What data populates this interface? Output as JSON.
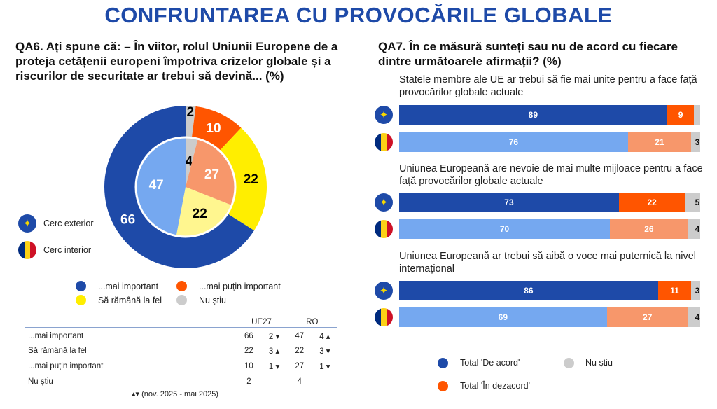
{
  "title": "CONFRUNTAREA CU PROVOCĂRILE GLOBALE",
  "colors": {
    "eu_agree": "#1e4aa8",
    "ro_agree": "#75a8f0",
    "eu_disagree": "#ff5500",
    "ro_disagree": "#f7976b",
    "dk": "#cccccc",
    "yellow": "#ffee00",
    "light_yellow": "#fff68f"
  },
  "chart_data": [
    {
      "type": "pie",
      "title": "QA6. Ați spune că: – În viitor, rolul Uniunii Europene de a proteja cetățenii europeni împotriva crizelor globale și a riscurilor de securitate ar trebui să devină... (%)",
      "categories": [
        "...mai important",
        "Să rămână la fel",
        "...mai puțin important",
        "Nu știu"
      ],
      "series": [
        {
          "name": "Cerc exterior",
          "values": [
            66,
            22,
            10,
            2
          ]
        },
        {
          "name": "Cerc interior",
          "values": [
            47,
            22,
            27,
            4
          ]
        }
      ],
      "legend": [
        "...mai important",
        "...mai puțin important",
        "Să rămână la fel",
        "Nu știu"
      ],
      "ring_labels": [
        "Cerc exterior",
        "Cerc interior"
      ]
    },
    {
      "type": "bar",
      "title": "QA7. În ce măsură sunteți sau nu de acord cu fiecare dintre următoarele afirmații? (%)",
      "categories": [
        "Statele membre ale UE ar trebui să fie mai unite pentru a face față provocărilor globale actuale",
        "Uniunea Europeană are nevoie de mai multe mijloace pentru a face față provocărilor globale actuale",
        "Uniunea Europeană ar trebui să aibă o voce mai puternică la nivel internațional"
      ],
      "series": [
        {
          "name": "UE27",
          "agree": [
            89,
            73,
            86
          ],
          "disagree": [
            9,
            22,
            11
          ],
          "dk": [
            2,
            5,
            3
          ],
          "dk_label": [
            "",
            "5",
            "3"
          ]
        },
        {
          "name": "RO",
          "agree": [
            76,
            70,
            69
          ],
          "disagree": [
            21,
            26,
            27
          ],
          "dk": [
            3,
            4,
            4
          ],
          "dk_label": [
            "3",
            "4",
            "4"
          ]
        }
      ],
      "legend": [
        "Total 'De acord'",
        "Nu știu",
        "Total 'În dezacord'"
      ]
    }
  ],
  "table": {
    "headers": [
      "UE27",
      "RO"
    ],
    "rows": [
      {
        "label": "...mai important",
        "eu": "66",
        "eu_d": "2 ▾",
        "ro": "47",
        "ro_d": "4 ▴"
      },
      {
        "label": "Să rămână la fel",
        "eu": "22",
        "eu_d": "3 ▴",
        "ro": "22",
        "ro_d": "3 ▾"
      },
      {
        "label": "...mai puțin important",
        "eu": "10",
        "eu_d": "1 ▾",
        "ro": "27",
        "ro_d": "1 ▾"
      },
      {
        "label": "Nu știu",
        "eu": "2",
        "eu_d": "=",
        "ro": "4",
        "ro_d": "="
      }
    ],
    "note": "▴▾ (nov. 2025 - mai 2025)"
  }
}
